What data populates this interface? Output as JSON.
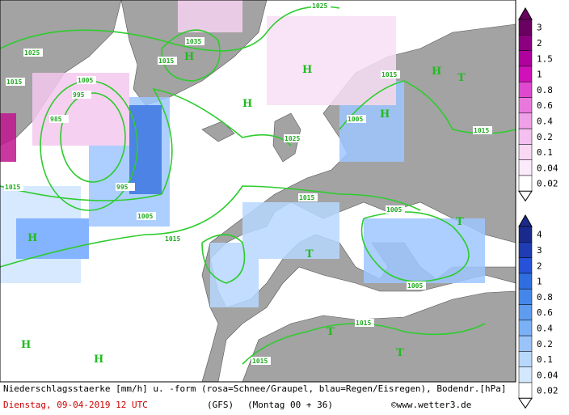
{
  "map": {
    "isobar_labels": [
      "1025",
      "1035",
      "1025",
      "1015",
      "1005",
      "995",
      "985",
      "1015",
      "1025",
      "1015",
      "1015",
      "1015",
      "995",
      "1005",
      "1015",
      "1015",
      "1005",
      "1005",
      "1015",
      "1015",
      "1005"
    ],
    "pressure_centers": [
      "H",
      "H",
      "H",
      "H",
      "H",
      "H",
      "H",
      "H",
      "T",
      "T",
      "T",
      "T",
      "T"
    ]
  },
  "legend": {
    "snow_scale": [
      "3",
      "2",
      "1.5",
      "1",
      "0.8",
      "0.6",
      "0.4",
      "0.2",
      "0.1",
      "0.04",
      "0.02"
    ],
    "rain_scale": [
      "4",
      "3",
      "2",
      "1",
      "0.8",
      "0.6",
      "0.4",
      "0.2",
      "0.1",
      "0.04",
      "0.02"
    ]
  },
  "footer": {
    "description": "Niederschlagsstaerke [mm/h] u. -form (rosa=Schnee/Graupel, blau=Regen/Eisregen), Bodendr.[hPa]",
    "date": "Dienstag, 09-04-2019  12 UTC",
    "model": "(GFS)",
    "run": "(Montag 00 + 36)",
    "credit": "©www.wetter3.de"
  }
}
